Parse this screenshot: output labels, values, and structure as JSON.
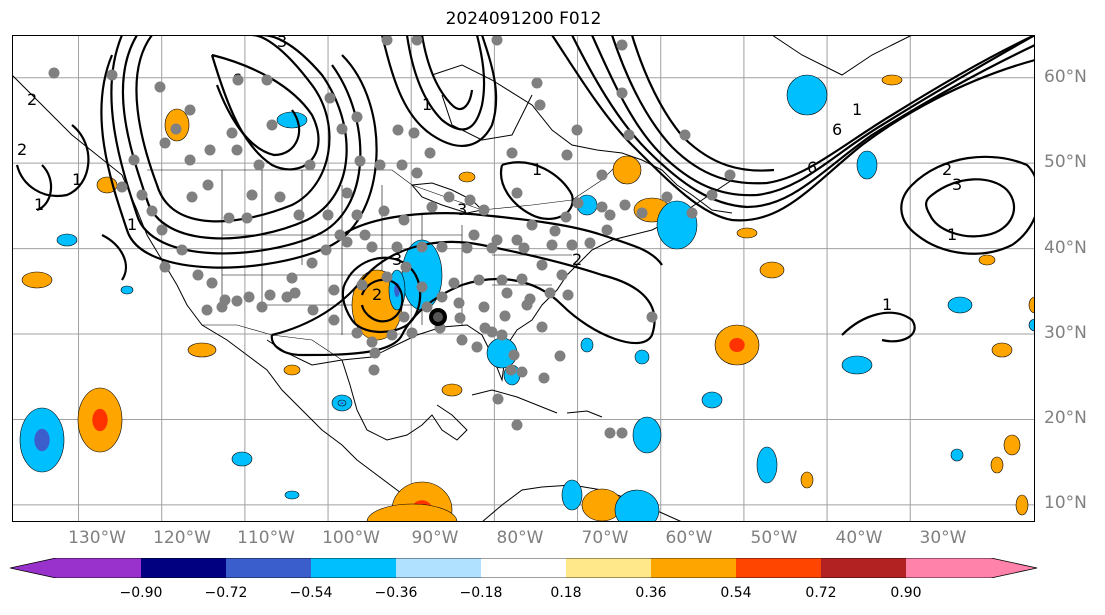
{
  "title": "2024091200 F012",
  "map": {
    "projection": "plate-carree",
    "lon_range": [
      -138,
      -15
    ],
    "lat_range": [
      8,
      65
    ],
    "gridlines": true,
    "lat_ticks": [
      {
        "value": 60,
        "label": "60°N"
      },
      {
        "value": 50,
        "label": "50°N"
      },
      {
        "value": 40,
        "label": "40°N"
      },
      {
        "value": 30,
        "label": "30°N"
      },
      {
        "value": 20,
        "label": "20°N"
      },
      {
        "value": 10,
        "label": "10°N"
      }
    ],
    "lon_ticks": [
      {
        "value": -130,
        "label": "130°W"
      },
      {
        "value": -120,
        "label": "120°W"
      },
      {
        "value": -110,
        "label": "110°W"
      },
      {
        "value": -100,
        "label": "100°W"
      },
      {
        "value": -90,
        "label": "90°W"
      },
      {
        "value": -80,
        "label": "80°W"
      },
      {
        "value": -70,
        "label": "70°W"
      },
      {
        "value": -60,
        "label": "60°W"
      },
      {
        "value": -50,
        "label": "50°W"
      },
      {
        "value": -40,
        "label": "40°W"
      },
      {
        "value": -30,
        "label": "30°W"
      }
    ],
    "contour_color": "#000000",
    "contour_labels": [
      "1",
      "2",
      "3",
      "4",
      "6"
    ],
    "station_marker_color": "#808080",
    "colors": {
      "positive_fill": "#ffa500",
      "positive_core": "#ff3300",
      "negative_fill": "#00bfff",
      "negative_core": "#3a5fcd"
    }
  },
  "colorbar": {
    "orientation": "horizontal",
    "extend": "both",
    "colors": [
      "#9932cc",
      "#000080",
      "#3a5fcd",
      "#00bfff",
      "#b0e2ff",
      "#ffffff",
      "#ffffff",
      "#ffe88a",
      "#ffa500",
      "#ff4500",
      "#b22222",
      "#ff82ab"
    ],
    "ticks": [
      "−0.90",
      "−0.72",
      "−0.54",
      "−0.36",
      "−0.18",
      "0.18",
      "0.36",
      "0.54",
      "0.72",
      "0.90"
    ]
  }
}
